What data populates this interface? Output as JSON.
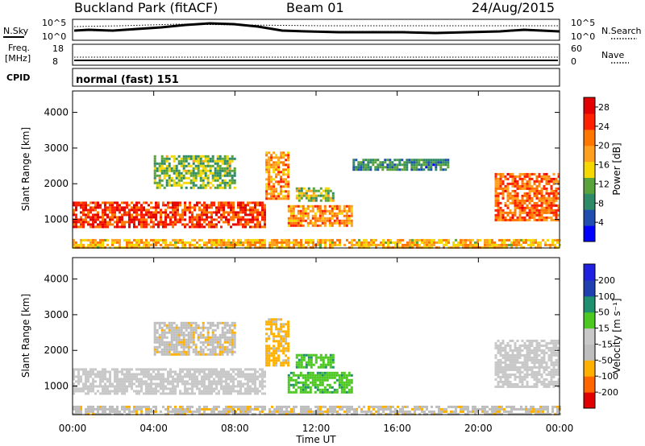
{
  "header": {
    "site": "Buckland Park (fitACF)",
    "beam": "Beam 01",
    "date": "24/Aug/2015"
  },
  "noise_panel": {
    "left_label": "N.Sky",
    "right_label": "N.Search",
    "left_ticks": [
      "10^5",
      "10^0"
    ],
    "right_ticks": [
      "10^5",
      "10^0"
    ]
  },
  "freq_panel": {
    "left_label_1": "Freq.",
    "left_label_2": "[MHz]",
    "right_label": "Nave",
    "left_ticks": [
      "18",
      "8"
    ],
    "right_ticks": [
      "60",
      "0"
    ]
  },
  "cpid": {
    "label": "CPID",
    "value": "normal (fast) 151"
  },
  "colors": {
    "scale_power": [
      "#0000ff",
      "#1f4eb0",
      "#2f8a68",
      "#59a33a",
      "#f5d800",
      "#ffa020",
      "#ff7700",
      "#ff2200",
      "#e20000"
    ],
    "scale_velocity": [
      "#e00000",
      "#ff6600",
      "#ffb000",
      "#bebebe",
      "#c8c8c8",
      "#4cc820",
      "#1e8f6f",
      "#2040b0",
      "#2020e0"
    ]
  },
  "chart_data": [
    {
      "type": "heatmap",
      "name": "power",
      "xlabel": "Time UT",
      "ylabel": "Slant Range [km]",
      "colorbar_label": "Power [dB]",
      "xlim": [
        0,
        24
      ],
      "ylim": [
        200,
        4600
      ],
      "x_ticks": [
        "00:00",
        "04:00",
        "08:00",
        "12:00",
        "16:00",
        "20:00",
        "00:00"
      ],
      "y_ticks": [
        1000,
        2000,
        3000,
        4000
      ],
      "colorbar_ticks": [
        4,
        8,
        12,
        16,
        20,
        24,
        28
      ],
      "colorbar_range": [
        0,
        30
      ],
      "regions": [
        {
          "t0": 0.0,
          "t1": 9.5,
          "r0": 800,
          "r1": 1500,
          "val": 25
        },
        {
          "t0": 9.5,
          "t1": 10.6,
          "r0": 1600,
          "r1": 2900,
          "val": 20
        },
        {
          "t0": 10.6,
          "t1": 13.8,
          "r0": 800,
          "r1": 1400,
          "val": 20
        },
        {
          "t0": 11.0,
          "t1": 12.8,
          "r0": 1500,
          "r1": 1900,
          "val": 13
        },
        {
          "t0": 4.0,
          "t1": 8.0,
          "r0": 1900,
          "r1": 2800,
          "val": 12
        },
        {
          "t0": 13.8,
          "t1": 18.5,
          "r0": 2400,
          "r1": 2700,
          "val": 8
        },
        {
          "t0": 20.8,
          "t1": 24.0,
          "r0": 1000,
          "r1": 2300,
          "val": 22
        },
        {
          "t0": 0.0,
          "t1": 24.0,
          "r0": 200,
          "r1": 450,
          "val": 18
        }
      ]
    },
    {
      "type": "heatmap",
      "name": "velocity",
      "xlabel": "Time UT",
      "ylabel": "Slant Range [km]",
      "colorbar_label": "Velocity [m s⁻¹]",
      "xlim": [
        0,
        24
      ],
      "ylim": [
        200,
        4600
      ],
      "x_ticks": [
        "00:00",
        "04:00",
        "08:00",
        "12:00",
        "16:00",
        "20:00",
        "00:00"
      ],
      "y_ticks": [
        1000,
        2000,
        3000,
        4000
      ],
      "colorbar_ticks": [
        -200,
        -100,
        -50,
        -15,
        15,
        50,
        100,
        200
      ],
      "regions": [
        {
          "t0": 0.0,
          "t1": 9.5,
          "r0": 800,
          "r1": 1500,
          "val": 0
        },
        {
          "t0": 9.5,
          "t1": 10.6,
          "r0": 1600,
          "r1": 2900,
          "val": -60
        },
        {
          "t0": 10.6,
          "t1": 13.8,
          "r0": 800,
          "r1": 1400,
          "val": 40
        },
        {
          "t0": 11.0,
          "t1": 12.8,
          "r0": 1500,
          "r1": 1900,
          "val": 40
        },
        {
          "t0": 4.0,
          "t1": 8.0,
          "r0": 1900,
          "r1": 2800,
          "val": -40
        },
        {
          "t0": 20.8,
          "t1": 24.0,
          "r0": 1000,
          "r1": 2300,
          "val": 0
        },
        {
          "t0": 0.0,
          "t1": 24.0,
          "r0": 200,
          "r1": 450,
          "val": -40
        }
      ]
    }
  ]
}
